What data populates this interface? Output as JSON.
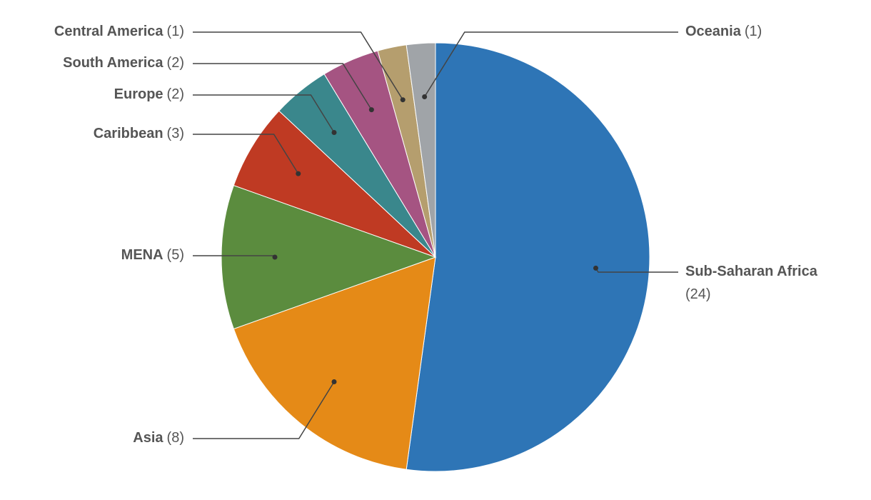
{
  "chart_data": {
    "type": "pie",
    "categories": [
      "Sub-Saharan Africa",
      "Asia",
      "MENA",
      "Caribbean",
      "Europe",
      "South America",
      "Central America",
      "Oceania"
    ],
    "values": [
      24,
      8,
      5,
      3,
      2,
      2,
      1,
      1
    ],
    "value_labels": [
      "(24)",
      "(8)",
      "(5)",
      "(3)",
      "(2)",
      "(2)",
      "(1)",
      "(1)"
    ],
    "colors": [
      "#2e75b6",
      "#e58a17",
      "#5b8c3e",
      "#bf3a23",
      "#3a878c",
      "#a55482",
      "#b59e6e",
      "#a0a4a8"
    ]
  }
}
